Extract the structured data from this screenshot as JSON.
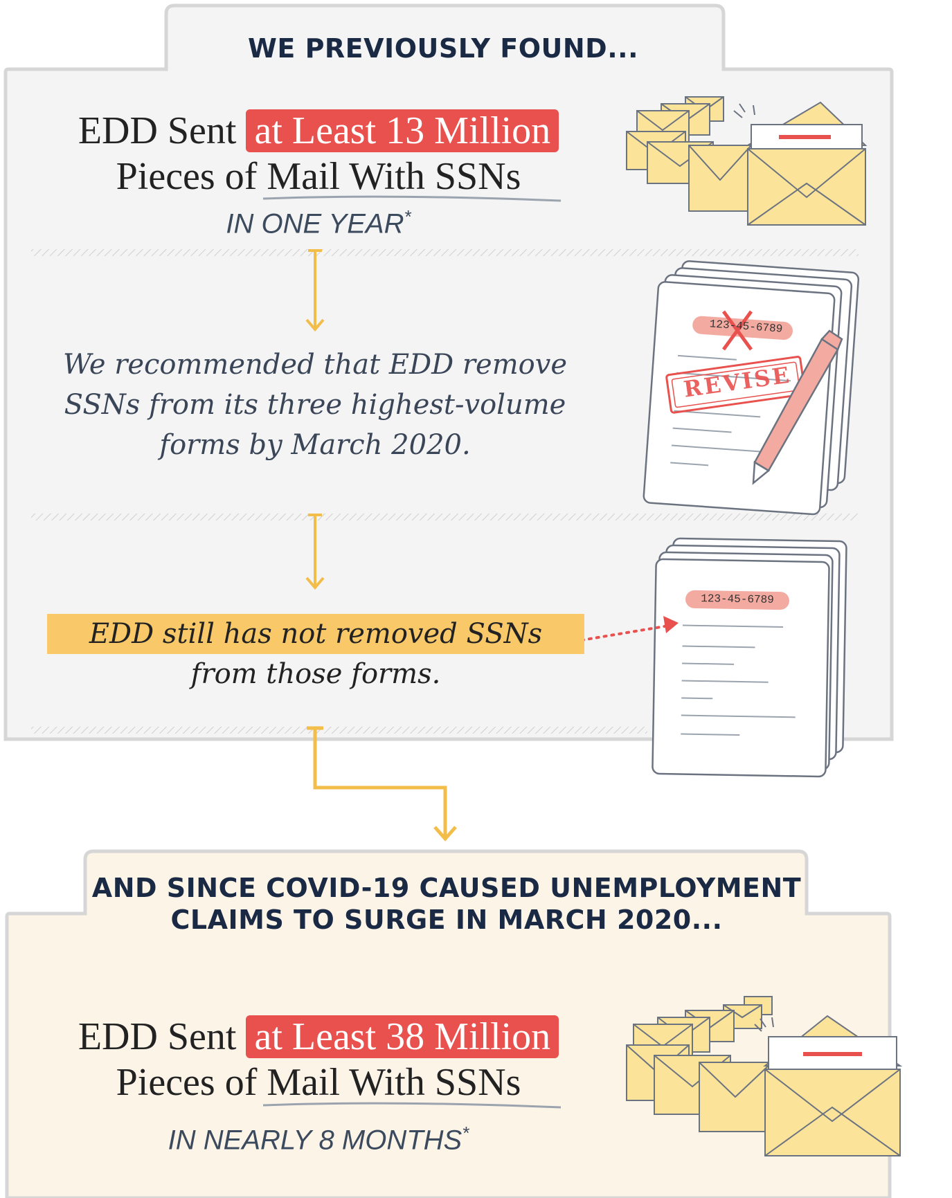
{
  "top_panel": {
    "heading": "WE PREVIOUSLY FOUND...",
    "headline_prefix": "EDD Sent",
    "headline_highlight": "at Least 13 Million",
    "headline_line2": "Pieces of Mail With SSNs",
    "subline": "IN ONE YEAR",
    "footnote_mark": "*"
  },
  "recommendation": {
    "text": "We recommended that EDD remove SSNs from its three highest-volume forms by March 2020."
  },
  "finding": {
    "highlight_text": "EDD still has not removed SSNs",
    "rest_text": "from those forms."
  },
  "document_revise": {
    "ssn_text": "123-45-6789",
    "stamp_text": "REVISE"
  },
  "document_ssn": {
    "ssn_text": "123-45-6789"
  },
  "bottom_panel": {
    "heading_line1": "AND SINCE COVID-19 CAUSED UNEMPLOYMENT",
    "heading_line2": "CLAIMS TO SURGE IN MARCH 2020...",
    "headline_prefix": "EDD Sent",
    "headline_highlight": "at Least 38 Million",
    "headline_line2": "Pieces of Mail With SSNs",
    "subline": "IN NEARLY 8 MONTHS",
    "footnote_mark": "*"
  },
  "colors": {
    "panel_top": "#f4f4f4",
    "panel_bottom": "#fdf4e8",
    "border": "#d8d8d8",
    "accent_red": "#e8514e",
    "accent_yellow": "#f2bd49",
    "envelope": "#fbe49a",
    "heading_navy": "#1b2a44"
  }
}
